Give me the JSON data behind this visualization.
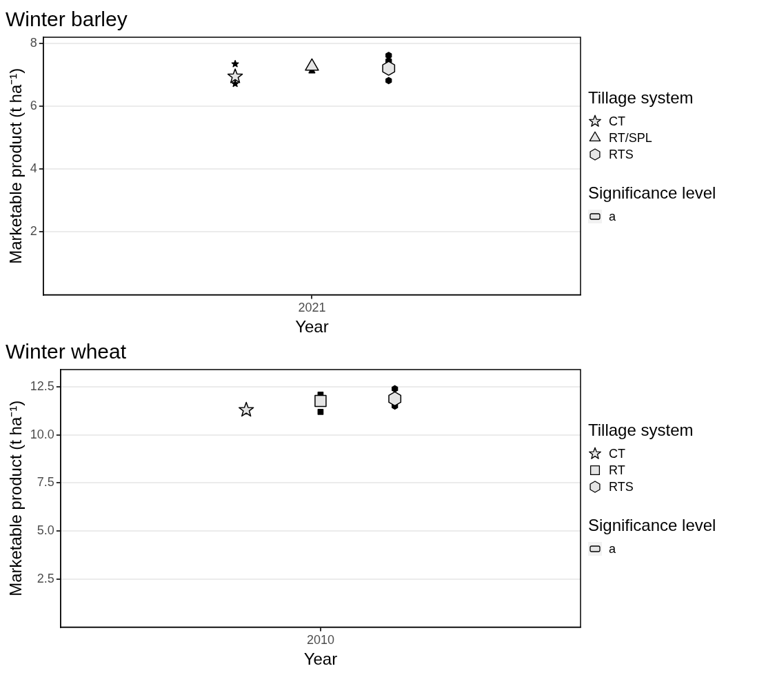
{
  "chart_data": [
    {
      "type": "scatter",
      "title": "Winter barley",
      "xlabel": "Year",
      "ylabel": "Marketable product (t ha⁻¹)",
      "categories": [
        "2021"
      ],
      "ylim": [
        0,
        8.2
      ],
      "yticks": [
        2,
        4,
        6,
        8
      ],
      "grid": "y",
      "legend": "right",
      "legend_title": "Tillage system",
      "annotations": [
        "Significance level",
        "a"
      ],
      "series": [
        {
          "color": "#000000",
          "marker": "star",
          "values": [
            7.35
          ]
        },
        {
          "color": "#000000",
          "marker": "star",
          "values": [
            6.72
          ]
        },
        {
          "name": "CT",
          "color": "#e5e5e5",
          "marker": "star",
          "values": [
            6.95
          ]
        },
        {
          "color": "#000000",
          "marker": "triangle",
          "values": [
            7.12
          ]
        },
        {
          "name": "RT/SPL",
          "color": "#e5e5e5",
          "marker": "triangle",
          "values": [
            7.27
          ]
        },
        {
          "color": "#000000",
          "values": [
            7.62
          ]
        },
        {
          "color": "#000000",
          "values": [
            7.45
          ]
        },
        {
          "color": "#000000",
          "values": [
            6.82
          ]
        },
        {
          "name": "RTS",
          "color": "#e5e5e5",
          "values": [
            7.21
          ]
        }
      ]
    },
    {
      "type": "scatter",
      "title": "Winter wheat",
      "xlabel": "Year",
      "ylabel": "Marketable product (t ha⁻¹)",
      "categories": [
        "2010"
      ],
      "ylim": [
        0,
        13.4
      ],
      "yticks": [
        {
          "value": 2.5,
          "label": "2.5"
        },
        {
          "value": 5,
          "label": "5.0"
        },
        {
          "value": 7.5,
          "label": "7.5"
        },
        {
          "value": 10,
          "label": "10.0"
        },
        {
          "value": 12.5,
          "label": "12.5"
        }
      ],
      "grid": "y",
      "legend": "right",
      "legend_title": "Tillage system",
      "annotations": [
        "Significance level",
        "a"
      ],
      "series": [
        {
          "name": "CT",
          "color": "#e5e5e5",
          "marker": "star",
          "values": [
            11.3
          ]
        },
        {
          "color": "#000000",
          "marker": "square",
          "values": [
            12.1
          ]
        },
        {
          "color": "#000000",
          "marker": "square",
          "values": [
            11.2
          ]
        },
        {
          "name": "RT",
          "color": "#e5e5e5",
          "marker": "square",
          "values": [
            11.77
          ]
        },
        {
          "color": "#000000",
          "values": [
            12.4
          ]
        },
        {
          "color": "#000000",
          "values": [
            11.5
          ]
        },
        {
          "name": "RTS",
          "color": "#e5e5e5",
          "values": [
            11.88
          ]
        }
      ]
    }
  ]
}
